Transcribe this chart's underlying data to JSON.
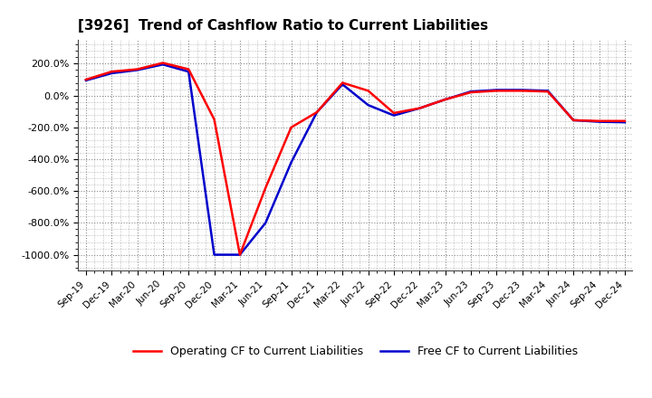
{
  "title": "[3926]  Trend of Cashflow Ratio to Current Liabilities",
  "x_labels": [
    "Sep-19",
    "Dec-19",
    "Mar-20",
    "Jun-20",
    "Sep-20",
    "Dec-20",
    "Mar-21",
    "Jun-21",
    "Sep-21",
    "Dec-21",
    "Mar-22",
    "Jun-22",
    "Sep-22",
    "Dec-22",
    "Mar-23",
    "Jun-23",
    "Sep-23",
    "Dec-23",
    "Mar-24",
    "Jun-24",
    "Sep-24",
    "Dec-24"
  ],
  "operating_cf": [
    100,
    150,
    165,
    205,
    165,
    -150,
    -1000,
    -580,
    -200,
    -105,
    80,
    30,
    -110,
    -80,
    -25,
    20,
    30,
    30,
    25,
    -155,
    -160,
    -160
  ],
  "free_cf": [
    95,
    140,
    160,
    195,
    150,
    -1000,
    -1000,
    -800,
    -420,
    -105,
    70,
    -60,
    -125,
    -80,
    -25,
    25,
    35,
    35,
    30,
    -155,
    -165,
    -168
  ],
  "ylim_min": -1100,
  "ylim_max": 350,
  "yticks": [
    -1000,
    -800,
    -600,
    -400,
    -200,
    0,
    200
  ],
  "operating_color": "#ff0000",
  "free_color": "#0000cc",
  "background_color": "#ffffff",
  "grid_color": "#888888",
  "legend_operating": "Operating CF to Current Liabilities",
  "legend_free": "Free CF to Current Liabilities",
  "line_width": 1.8
}
